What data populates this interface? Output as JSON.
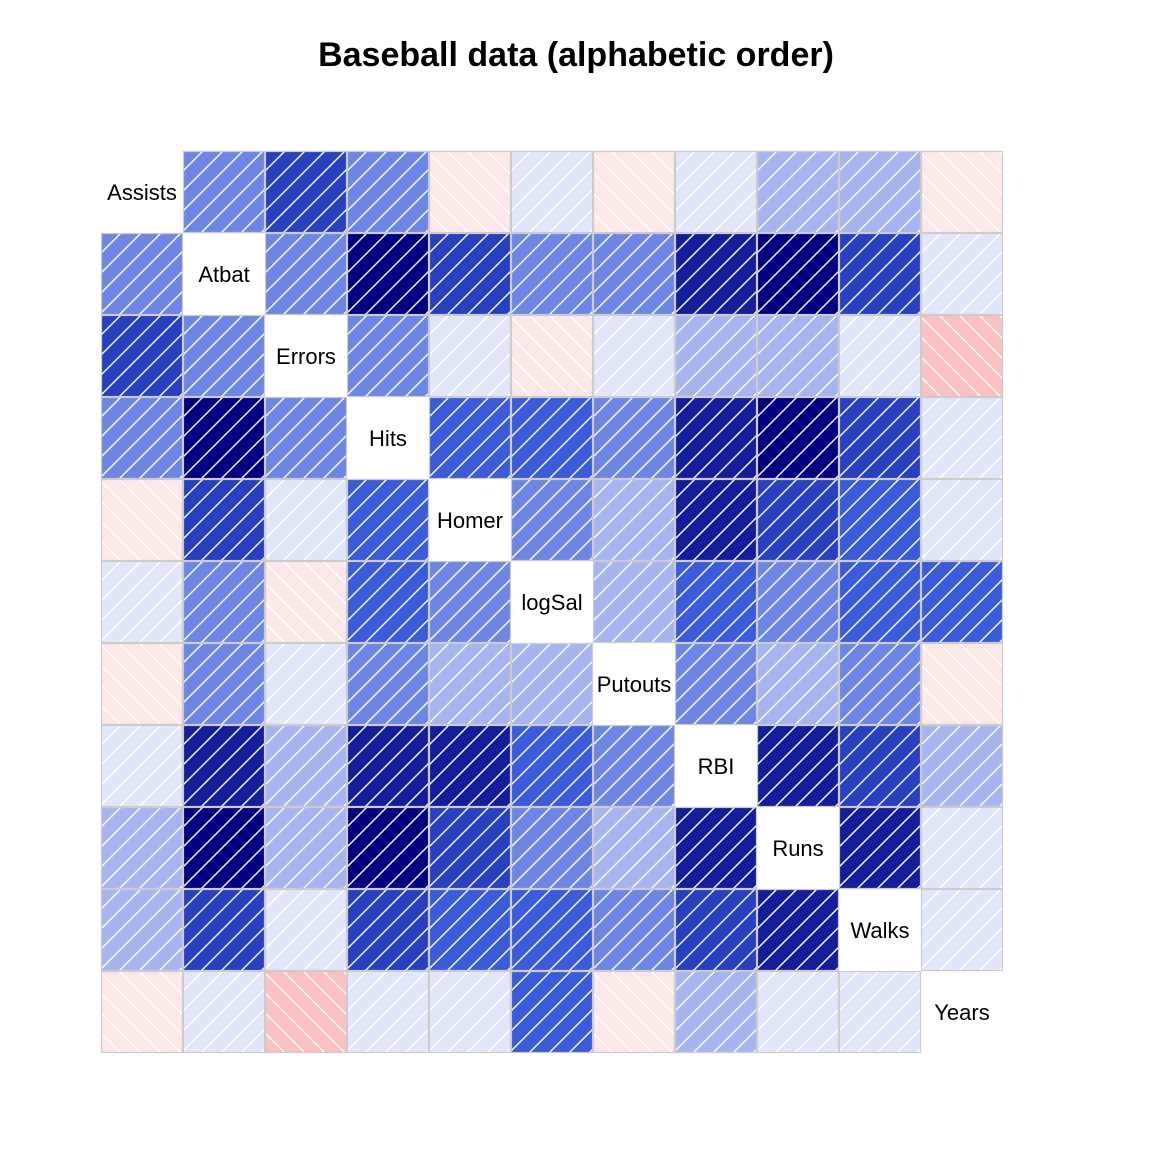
{
  "chart_data": {
    "type": "heatmap",
    "title": "Baseball data (alphabetic order)",
    "variables": [
      "Assists",
      "Atbat",
      "Errors",
      "Hits",
      "Homer",
      "logSal",
      "Putouts",
      "RBI",
      "Runs",
      "Walks",
      "Years"
    ],
    "correlation": [
      [
        1.0,
        0.35,
        0.7,
        0.32,
        -0.11,
        0.03,
        -0.08,
        0.1,
        0.2,
        0.22,
        -0.1
      ],
      [
        0.35,
        1.0,
        0.32,
        0.97,
        0.7,
        0.41,
        0.33,
        0.85,
        0.92,
        0.64,
        0.04
      ],
      [
        0.7,
        0.32,
        1.0,
        0.3,
        0.05,
        -0.08,
        0.1,
        0.18,
        0.2,
        0.1,
        -0.28
      ],
      [
        0.32,
        0.97,
        0.3,
        1.0,
        0.55,
        0.47,
        0.32,
        0.85,
        0.93,
        0.65,
        0.05
      ],
      [
        -0.11,
        0.7,
        0.05,
        0.55,
        1.0,
        0.36,
        0.21,
        0.85,
        0.64,
        0.55,
        0.1
      ],
      [
        0.03,
        0.41,
        -0.08,
        0.47,
        0.36,
        1.0,
        0.22,
        0.51,
        0.39,
        0.48,
        0.54
      ],
      [
        -0.08,
        0.33,
        0.1,
        0.32,
        0.21,
        0.22,
        1.0,
        0.31,
        0.24,
        0.29,
        -0.09
      ],
      [
        0.1,
        0.85,
        0.18,
        0.85,
        0.85,
        0.51,
        0.31,
        1.0,
        0.82,
        0.7,
        0.2
      ],
      [
        0.2,
        0.92,
        0.2,
        0.93,
        0.64,
        0.39,
        0.24,
        0.82,
        1.0,
        0.8,
        0.07
      ],
      [
        0.22,
        0.64,
        0.1,
        0.65,
        0.55,
        0.48,
        0.29,
        0.7,
        0.8,
        1.0,
        0.06
      ],
      [
        -0.1,
        0.04,
        -0.28,
        0.05,
        0.1,
        0.54,
        -0.09,
        0.2,
        0.07,
        0.06,
        1.0
      ]
    ],
    "colors": {
      "positive_scale": [
        "#e1e6fa",
        "#a6b5f0",
        "#6c86e5",
        "#3a5bda",
        "#2740c0",
        "#141e9b",
        "#000080"
      ],
      "negative_scale": [
        "#fde7e7",
        "#fbc1c0",
        "#f58b8a"
      ],
      "shade_line": "#ffffff",
      "cell_border": "#cccccc"
    }
  }
}
